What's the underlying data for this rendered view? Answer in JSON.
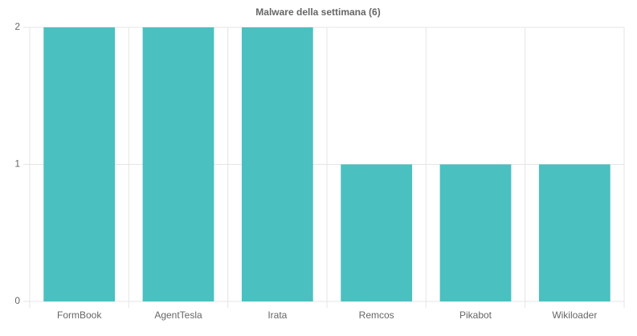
{
  "chart_data": {
    "type": "bar",
    "title": "Malware della settimana (6)",
    "categories": [
      "FormBook",
      "AgentTesla",
      "Irata",
      "Remcos",
      "Pikabot",
      "Wikiloader"
    ],
    "values": [
      2,
      2,
      2,
      1,
      1,
      1
    ],
    "color": "#4bc0c0",
    "ylim": [
      0,
      2
    ],
    "yticks": [
      0,
      1,
      2
    ],
    "grid": true
  }
}
